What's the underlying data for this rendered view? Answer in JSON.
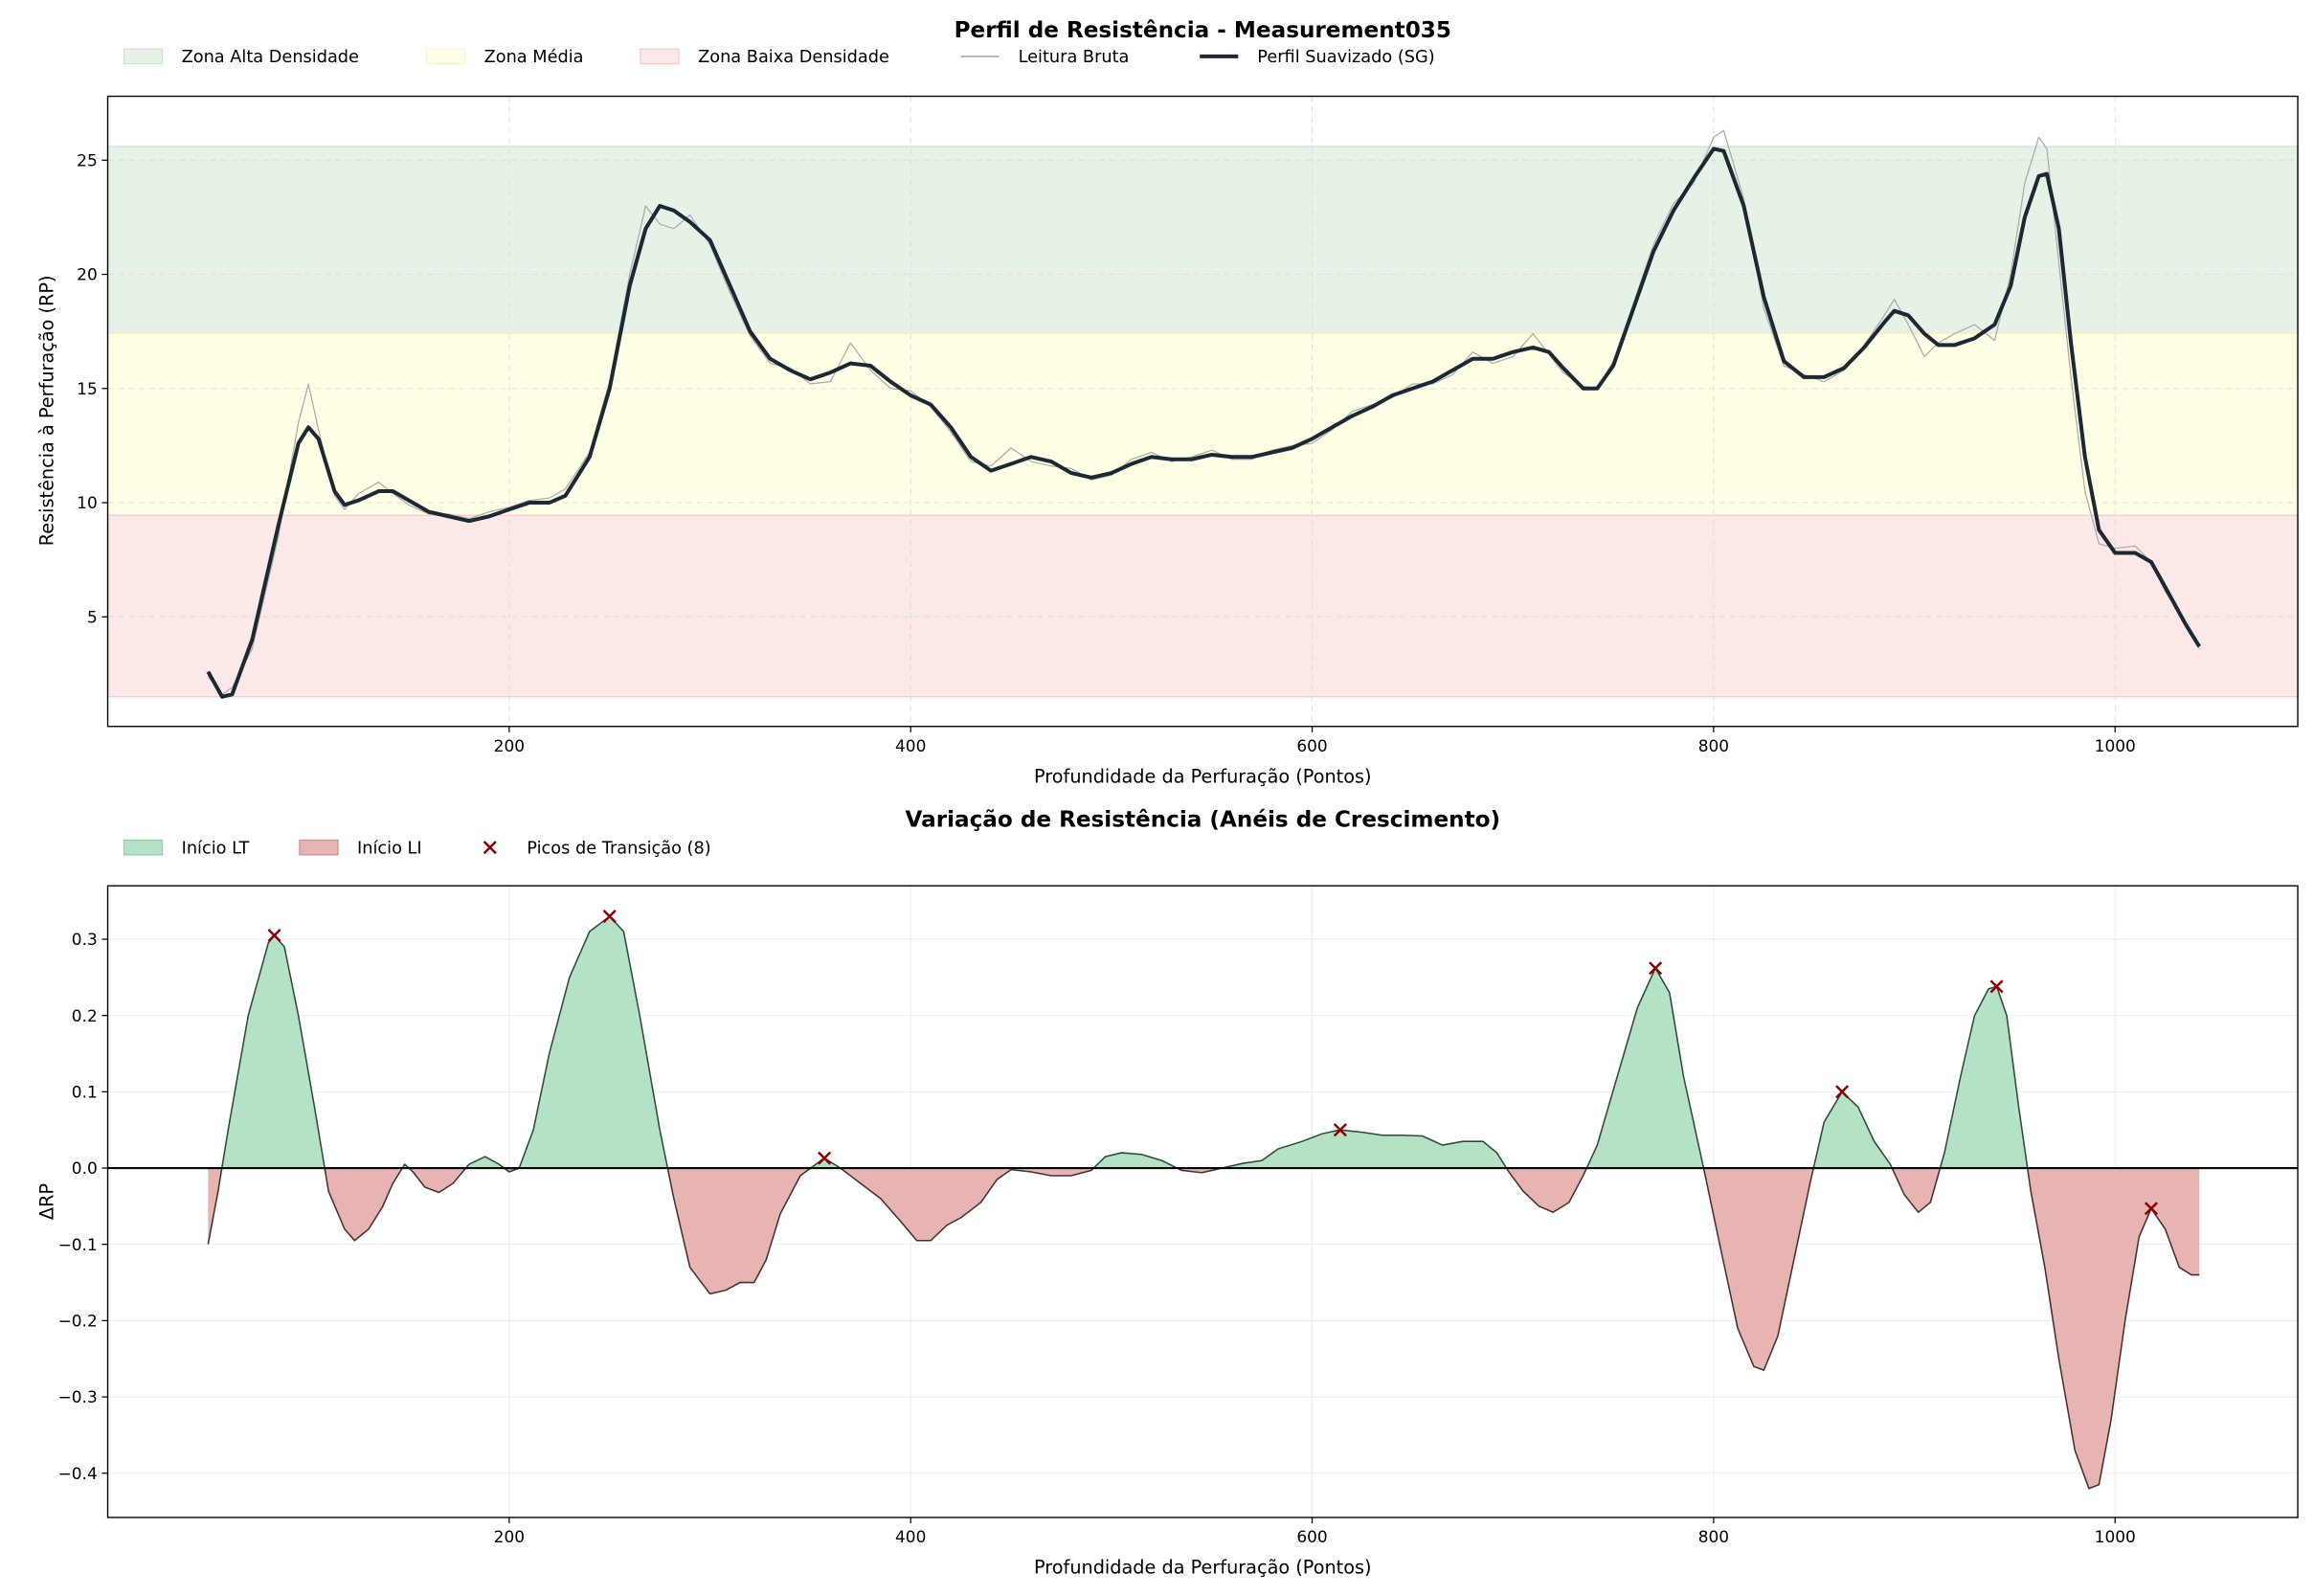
{
  "colors": {
    "zone_high": "#e6f2e6",
    "zone_high_edge": "#c8e6c8",
    "zone_mid": "#ffffe6",
    "zone_mid_edge": "#f5f5c0",
    "zone_low": "#fde8e8",
    "zone_low_edge": "#f8c8c8",
    "raw": "#aaaaaa",
    "smooth": "#1c2833",
    "lt_fill": "#b3e2c7",
    "lt_edge": "#2e4a38",
    "li_fill": "#e8b4b2",
    "li_edge": "#4a2e2e",
    "peak": "#8b0000"
  },
  "chart_data": [
    {
      "type": "line",
      "title": "Perfil de Resistência - Measurement035",
      "xlabel": "Profundidade da Perfuração (Pontos)",
      "ylabel": "Resistência à Perfuração (RP)",
      "xlim": [
        0,
        1091
      ],
      "ylim": [
        0.2,
        27.8
      ],
      "xticks": [
        200,
        400,
        600,
        800,
        1000
      ],
      "yticks": [
        5,
        10,
        15,
        20,
        25
      ],
      "grid": true,
      "legend_position": "top-left",
      "zones": [
        {
          "name": "Zona Alta Densidade",
          "range": [
            17.4,
            25.6
          ]
        },
        {
          "name": "Zona Média",
          "range": [
            9.45,
            17.4
          ]
        },
        {
          "name": "Zona Baixa Densidade",
          "range": [
            1.5,
            9.45
          ]
        }
      ],
      "series": [
        {
          "name": "Leitura Bruta",
          "x": [
            50,
            57,
            62,
            72,
            85,
            95,
            100,
            105,
            113,
            118,
            125,
            135,
            142,
            150,
            160,
            170,
            180,
            190,
            200,
            210,
            220,
            228,
            240,
            250,
            260,
            268,
            275,
            282,
            290,
            300,
            310,
            320,
            330,
            340,
            350,
            360,
            370,
            380,
            390,
            400,
            410,
            420,
            430,
            440,
            450,
            460,
            470,
            480,
            490,
            500,
            510,
            520,
            530,
            540,
            550,
            560,
            570,
            580,
            590,
            600,
            610,
            620,
            630,
            640,
            650,
            660,
            670,
            680,
            690,
            700,
            710,
            718,
            725,
            735,
            742,
            750,
            760,
            770,
            780,
            790,
            800,
            805,
            815,
            825,
            835,
            845,
            855,
            865,
            875,
            885,
            890,
            897,
            905,
            912,
            920,
            930,
            940,
            948,
            955,
            962,
            966,
            972,
            978,
            985,
            992,
            1000,
            1010,
            1018,
            1025,
            1035,
            1042
          ],
          "y": [
            2.4,
            1.6,
            1.9,
            3.6,
            8.5,
            13.5,
            15.2,
            13.2,
            10.3,
            9.7,
            10.4,
            10.9,
            10.4,
            9.9,
            9.5,
            9.5,
            9.3,
            9.6,
            9.8,
            10.1,
            10.2,
            10.6,
            12.2,
            15.3,
            20.0,
            23.0,
            22.2,
            22.0,
            22.6,
            21.3,
            19.2,
            17.3,
            16.1,
            15.9,
            15.2,
            15.3,
            17.0,
            15.8,
            15.0,
            14.9,
            14.2,
            13.1,
            11.8,
            11.6,
            12.4,
            11.8,
            11.6,
            11.5,
            11.0,
            11.2,
            11.9,
            12.2,
            11.8,
            12.0,
            12.3,
            11.9,
            11.9,
            12.3,
            12.5,
            12.6,
            13.2,
            14.0,
            14.3,
            14.6,
            15.2,
            15.2,
            15.6,
            16.6,
            16.1,
            16.4,
            17.4,
            16.5,
            15.7,
            15.1,
            15.0,
            16.2,
            18.7,
            21.3,
            23.1,
            24.0,
            26.0,
            26.3,
            23.3,
            18.5,
            16.0,
            15.6,
            15.3,
            15.8,
            16.9,
            18.2,
            18.9,
            17.8,
            16.4,
            17.0,
            17.4,
            17.8,
            17.1,
            20.0,
            24.0,
            26.0,
            25.5,
            20.5,
            15.5,
            10.5,
            8.2,
            8.0,
            8.1,
            7.4,
            6.1,
            4.8,
            3.6
          ]
        },
        {
          "name": "Perfil Suavizado (SG)",
          "x": [
            50,
            57,
            62,
            72,
            85,
            95,
            100,
            105,
            113,
            118,
            125,
            135,
            142,
            150,
            160,
            170,
            180,
            190,
            200,
            210,
            220,
            228,
            240,
            250,
            260,
            268,
            275,
            282,
            290,
            300,
            310,
            320,
            330,
            340,
            350,
            360,
            370,
            380,
            390,
            400,
            410,
            420,
            430,
            440,
            450,
            460,
            470,
            480,
            490,
            500,
            510,
            520,
            530,
            540,
            550,
            560,
            570,
            580,
            590,
            600,
            610,
            620,
            630,
            640,
            650,
            660,
            670,
            680,
            690,
            700,
            710,
            718,
            725,
            735,
            742,
            750,
            760,
            770,
            780,
            790,
            800,
            805,
            815,
            825,
            835,
            845,
            855,
            865,
            875,
            885,
            890,
            897,
            905,
            912,
            920,
            930,
            940,
            948,
            955,
            962,
            966,
            972,
            978,
            985,
            992,
            1000,
            1010,
            1018,
            1025,
            1035,
            1042
          ],
          "y": [
            2.6,
            1.5,
            1.6,
            4.0,
            9.0,
            12.6,
            13.3,
            12.8,
            10.5,
            9.9,
            10.1,
            10.5,
            10.5,
            10.1,
            9.6,
            9.4,
            9.2,
            9.4,
            9.7,
            10.0,
            10.0,
            10.3,
            12.0,
            15.0,
            19.5,
            22.0,
            23.0,
            22.8,
            22.3,
            21.5,
            19.5,
            17.5,
            16.3,
            15.8,
            15.4,
            15.7,
            16.1,
            16.0,
            15.3,
            14.7,
            14.3,
            13.3,
            12.0,
            11.4,
            11.7,
            12.0,
            11.8,
            11.3,
            11.1,
            11.3,
            11.7,
            12.0,
            11.9,
            11.9,
            12.1,
            12.0,
            12.0,
            12.2,
            12.4,
            12.8,
            13.3,
            13.8,
            14.2,
            14.7,
            15.0,
            15.3,
            15.8,
            16.3,
            16.3,
            16.6,
            16.8,
            16.6,
            15.9,
            15.0,
            15.0,
            16.0,
            18.5,
            21.0,
            22.8,
            24.2,
            25.5,
            25.4,
            23.0,
            19.0,
            16.2,
            15.5,
            15.5,
            15.9,
            16.8,
            17.9,
            18.4,
            18.2,
            17.4,
            16.9,
            16.9,
            17.2,
            17.8,
            19.5,
            22.5,
            24.3,
            24.4,
            22.0,
            17.0,
            12.0,
            8.8,
            7.8,
            7.8,
            7.4,
            6.3,
            4.7,
            3.7
          ]
        }
      ]
    },
    {
      "type": "area",
      "title": "Variação de Resistência (Anéis de Crescimento)",
      "xlabel": "Profundidade da Perfuração (Pontos)",
      "ylabel": "ΔRP",
      "xlim": [
        0,
        1091
      ],
      "ylim": [
        -0.458,
        0.37
      ],
      "xticks": [
        200,
        400,
        600,
        800,
        1000
      ],
      "yticks": [
        -0.4,
        -0.3,
        -0.2,
        -0.1,
        0.0,
        0.1,
        0.2,
        0.3
      ],
      "ytick_labels": [
        "−0.4",
        "−0.3",
        "−0.2",
        "−0.1",
        "0.0",
        "0.1",
        "0.2",
        "0.3"
      ],
      "grid": true,
      "legend_position": "top-left",
      "legend": [
        "Início LT",
        "Início LI",
        "Picos de Transição (8)"
      ],
      "x": [
        50,
        55,
        60,
        70,
        80,
        83,
        88,
        95,
        103,
        110,
        118,
        123,
        130,
        137,
        142,
        148,
        152,
        158,
        165,
        172,
        180,
        188,
        195,
        200,
        205,
        212,
        220,
        230,
        240,
        250,
        257,
        265,
        275,
        282,
        290,
        300,
        308,
        315,
        322,
        328,
        335,
        345,
        357,
        365,
        375,
        385,
        395,
        403,
        410,
        418,
        425,
        435,
        443,
        450,
        460,
        470,
        480,
        490,
        497,
        505,
        515,
        525,
        535,
        545,
        555,
        565,
        575,
        583,
        595,
        605,
        614,
        625,
        635,
        645,
        655,
        665,
        675,
        685,
        692,
        698,
        705,
        713,
        720,
        728,
        735,
        742,
        752,
        762,
        771,
        778,
        785,
        795,
        803,
        812,
        820,
        825,
        832,
        840,
        848,
        855,
        864,
        872,
        880,
        888,
        895,
        902,
        908,
        915,
        923,
        930,
        937,
        941,
        946,
        952,
        958,
        965,
        972,
        980,
        987,
        992,
        998,
        1005,
        1012,
        1018,
        1025,
        1032,
        1038,
        1042
      ],
      "y": [
        -0.1,
        -0.03,
        0.05,
        0.2,
        0.295,
        0.305,
        0.29,
        0.2,
        0.08,
        -0.03,
        -0.08,
        -0.095,
        -0.08,
        -0.05,
        -0.02,
        0.005,
        -0.005,
        -0.025,
        -0.032,
        -0.02,
        0.005,
        0.015,
        0.005,
        -0.005,
        0,
        0.05,
        0.15,
        0.25,
        0.31,
        0.33,
        0.31,
        0.2,
        0.05,
        -0.04,
        -0.13,
        -0.165,
        -0.16,
        -0.15,
        -0.15,
        -0.12,
        -0.06,
        -0.01,
        0.013,
        0.0,
        -0.02,
        -0.04,
        -0.07,
        -0.095,
        -0.095,
        -0.075,
        -0.065,
        -0.045,
        -0.015,
        -0.002,
        -0.005,
        -0.01,
        -0.01,
        -0.003,
        0.015,
        0.02,
        0.018,
        0.01,
        -0.003,
        -0.006,
        0.0,
        0.006,
        0.01,
        0.025,
        0.035,
        0.045,
        0.05,
        0.047,
        0.043,
        0.043,
        0.042,
        0.03,
        0.035,
        0.035,
        0.02,
        -0.005,
        -0.03,
        -0.05,
        -0.058,
        -0.045,
        -0.01,
        0.03,
        0.12,
        0.21,
        0.262,
        0.23,
        0.12,
        0.0,
        -0.1,
        -0.21,
        -0.26,
        -0.265,
        -0.22,
        -0.12,
        -0.02,
        0.06,
        0.1,
        0.08,
        0.035,
        0.005,
        -0.035,
        -0.058,
        -0.045,
        0.02,
        0.12,
        0.2,
        0.235,
        0.238,
        0.2,
        0.08,
        -0.03,
        -0.13,
        -0.25,
        -0.37,
        -0.42,
        -0.415,
        -0.33,
        -0.2,
        -0.09,
        -0.053,
        -0.08,
        -0.13,
        -0.14,
        -0.14
      ],
      "peaks": [
        {
          "x": 83,
          "y": 0.305
        },
        {
          "x": 250,
          "y": 0.33
        },
        {
          "x": 357,
          "y": 0.013
        },
        {
          "x": 614,
          "y": 0.05
        },
        {
          "x": 771,
          "y": 0.262
        },
        {
          "x": 864,
          "y": 0.1
        },
        {
          "x": 941,
          "y": 0.238
        },
        {
          "x": 1018,
          "y": -0.053
        }
      ]
    }
  ]
}
